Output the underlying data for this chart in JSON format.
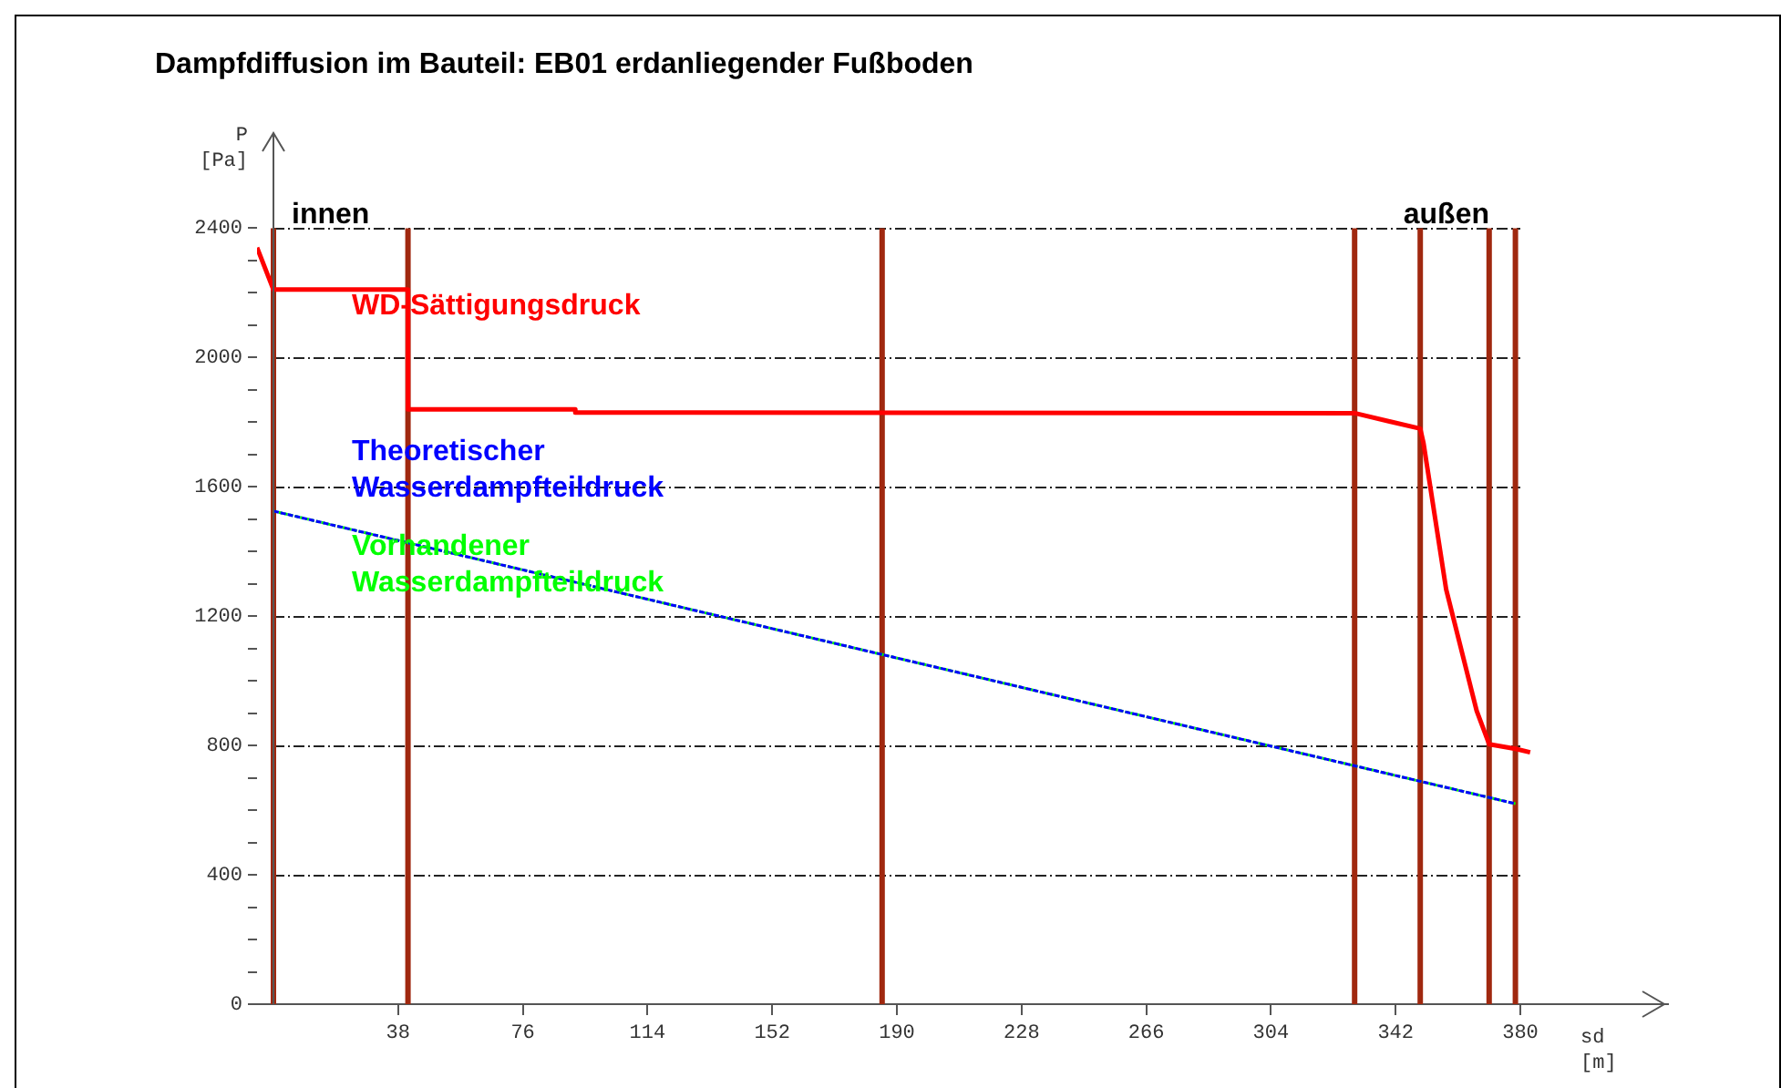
{
  "chart_data": {
    "type": "line",
    "title": "Dampfdiffusion im Bauteil: EB01 erdanliegender Fußboden",
    "xlabel": "sd\n[m]",
    "ylabel": "P\n[Pa]",
    "xlim": [
      -5,
      425
    ],
    "xticks": [
      38,
      76,
      114,
      152,
      190,
      228,
      266,
      304,
      342,
      380
    ],
    "ylim": [
      0,
      2700
    ],
    "yticks": [
      0,
      {
        "value": 100,
        "label": null
      },
      {
        "value": 200,
        "label": null
      },
      {
        "value": 300,
        "label": null
      },
      400,
      {
        "value": 500,
        "label": null
      },
      {
        "value": 600,
        "label": null
      },
      {
        "value": 700,
        "label": null
      },
      800,
      {
        "value": 900,
        "label": null
      },
      {
        "value": 1000,
        "label": null
      },
      {
        "value": 1100,
        "label": null
      },
      1200,
      {
        "value": 1300,
        "label": null
      },
      {
        "value": 1400,
        "label": null
      },
      {
        "value": 1500,
        "label": null
      },
      1600,
      {
        "value": 1700,
        "label": null
      },
      {
        "value": 1800,
        "label": null
      },
      {
        "value": 1900,
        "label": null
      },
      2000,
      {
        "value": 2100,
        "label": null
      },
      {
        "value": 2200,
        "label": null
      },
      {
        "value": 2300,
        "label": null
      },
      2400
    ],
    "grid": "y",
    "legend": false,
    "marker": "none",
    "series": [
      {
        "name": "WD-Sättigungsdruck",
        "color": "#ff0000",
        "line_style": "solid",
        "x": [
          -5,
          0,
          41,
          41,
          92,
          92,
          329.5,
          349.5,
          350.5,
          357.4,
          366.7,
          370.5,
          378.5,
          383
        ],
        "values": [
          2340,
          2210,
          2210,
          1840,
          1840,
          1830,
          1828,
          1780,
          1735,
          1283,
          907,
          804,
          790,
          779
        ]
      },
      {
        "name": "Theoretischer\nWasserdampfteildruck",
        "color": "#0000ff",
        "line_style": "dashed",
        "x": [
          0,
          378.5
        ],
        "values": [
          1525,
          620
        ]
      },
      {
        "name": "Vorhandener\nWasserdampfteildruck",
        "color": "#00ff00",
        "line_style": "dotted",
        "x": [
          0,
          378.5
        ],
        "values": [
          1525,
          620
        ]
      }
    ],
    "ref_lines": [
      {
        "axis": "x",
        "value": 0,
        "color": "#a0280f"
      },
      {
        "axis": "x",
        "value": 41,
        "color": "#a0280f"
      },
      {
        "axis": "x",
        "value": 185.5,
        "color": "#a0280f"
      },
      {
        "axis": "x",
        "value": 329.5,
        "color": "#a0280f"
      },
      {
        "axis": "x",
        "value": 349.5,
        "color": "#a0280f"
      },
      {
        "axis": "x",
        "value": 370.5,
        "color": "#a0280f"
      },
      {
        "axis": "x",
        "value": 378.5,
        "color": "#a0280f"
      }
    ],
    "annotations": [
      "innen",
      "außen"
    ]
  }
}
